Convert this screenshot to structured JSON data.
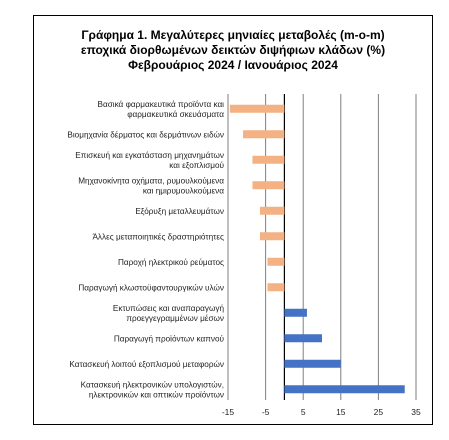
{
  "chart_data": {
    "type": "bar",
    "orientation": "horizontal",
    "title": [
      "Γράφημα 1. Μεγαλύτερες μηνιαίες μεταβολές (m-o-m)",
      "εποχικά διορθωμένων δεικτών διψήφιων κλάδων (%)",
      "Φεβρουάριος 2024 / Ιανουάριος  2024"
    ],
    "categories": [
      [
        "Βασικά φαρμακευτικά προϊόντα και",
        "φαρμακευτικά σκευάσματα"
      ],
      [
        "Βιομηχανία δέρματος και δερμάτινων ειδών"
      ],
      [
        "Επισκευή και εγκατάσταση μηχανημάτων",
        "και εξοπλισμού"
      ],
      [
        "Μηχανοκίνητα οχήματα, ρυμουλκούμενα",
        "και ημιρυμουλκούμενα"
      ],
      [
        "Εξόρυξη μεταλλευμάτων"
      ],
      [
        "Άλλες μεταποιητικές δραστηριότητες"
      ],
      [
        "Παροχή ηλεκτρικού ρεύματος"
      ],
      [
        "Παραγωγή κλωστοϋφαντουργικών υλών"
      ],
      [
        "Εκτυπώσεις και αναπαραγωγή",
        "προεγγεγραμμένων μέσων"
      ],
      [
        "Παραγωγή προϊόντων καπνού"
      ],
      [
        "Κατασκευή λοιπού εξοπλισμού μεταφορών"
      ],
      [
        "Κατασκευή ηλεκτρονικών υπολογιστών,",
        "ηλεκτρονικών και οπτικών προϊόντων"
      ]
    ],
    "values": [
      -14.5,
      -11.0,
      -8.5,
      -8.5,
      -6.5,
      -6.5,
      -4.5,
      -4.5,
      6.0,
      10.0,
      15.0,
      32.0
    ],
    "colors": {
      "negative": "#f4b183",
      "positive": "#4472c4",
      "grid": "#7f7f7f",
      "zero": "#000000"
    },
    "xlim": [
      -15,
      35
    ],
    "xticks": [
      -15,
      -5,
      5,
      15,
      25,
      35
    ],
    "grid": "vertical lines at ticks"
  }
}
